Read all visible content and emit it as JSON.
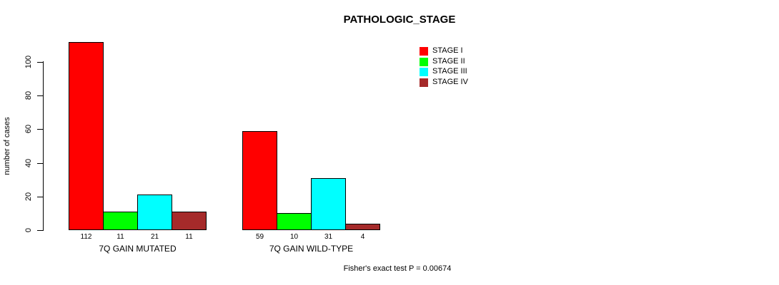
{
  "chart_data": {
    "type": "bar",
    "title": "PATHOLOGIC_STAGE",
    "xlabel": "",
    "ylabel": "number of cases",
    "ylim": [
      0,
      100
    ],
    "yticks": [
      0,
      20,
      40,
      60,
      80,
      100
    ],
    "grid": false,
    "categories": [
      "7Q GAIN MUTATED",
      "7Q GAIN WILD-TYPE"
    ],
    "series": [
      {
        "name": "STAGE I",
        "color": "#ff0000",
        "values": [
          112,
          59
        ]
      },
      {
        "name": "STAGE II",
        "color": "#00ff00",
        "values": [
          11,
          10
        ]
      },
      {
        "name": "STAGE III",
        "color": "#00ffff",
        "values": [
          21,
          31
        ]
      },
      {
        "name": "STAGE IV",
        "color": "#a52a2a",
        "values": [
          11,
          4
        ]
      }
    ],
    "legend": {
      "position": "top-right",
      "entries": [
        "STAGE I",
        "STAGE II",
        "STAGE III",
        "STAGE IV"
      ]
    },
    "show_bar_values": true,
    "bar_border_color": "#000000",
    "text_color": "#000000",
    "annotation": "Fisher's exact test P = 0.00674"
  }
}
